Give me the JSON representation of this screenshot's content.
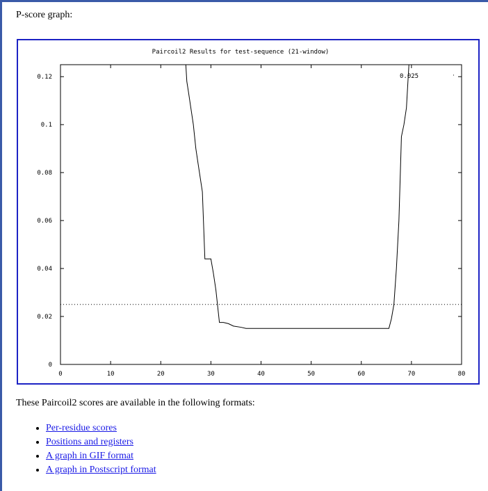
{
  "page": {
    "section_title": "P-score graph:",
    "formats_intro": "These Paircoil2 scores are available in the following formats:",
    "links": [
      "Per-residue scores",
      "Positions and registers",
      "A graph in GIF format",
      "A graph in Postscript format"
    ]
  },
  "colors": {
    "frame_border": "#1c22c4",
    "page_rule": "#3a5aa8",
    "link": "#1a1ae6",
    "plot_line": "#000000"
  },
  "chart_data": {
    "type": "line",
    "title": "Paircoil2 Results for test-sequence  (21-window)",
    "xlim": [
      0,
      80
    ],
    "ylim": [
      0,
      0.125
    ],
    "xticks": [
      0,
      10,
      20,
      30,
      40,
      50,
      60,
      70,
      80
    ],
    "xtick_labels": [
      "0",
      "10",
      "20",
      "30",
      "40",
      "50",
      "60",
      "70",
      "80"
    ],
    "yticks": [
      0,
      0.02,
      0.04,
      0.06,
      0.08,
      0.1,
      0.12
    ],
    "ytick_labels": [
      "0",
      "0.02",
      "0.04",
      "0.06",
      "0.08",
      "0.1",
      "0.12"
    ],
    "grid": false,
    "series": [
      {
        "style": "solid",
        "x": [
          25,
          25.2,
          25.5,
          26,
          26.5,
          27,
          27.5,
          28.3,
          28.8,
          29.4,
          30,
          30.5,
          31,
          31.7,
          32.5,
          33.5,
          34.5,
          36,
          37,
          40,
          50,
          60,
          65.5,
          66,
          66.5,
          67,
          67.5,
          68,
          68.5,
          69,
          69.3,
          69.5
        ],
        "y": [
          0.125,
          0.118,
          0.114,
          0.107,
          0.1,
          0.09,
          0.083,
          0.072,
          0.044,
          0.044,
          0.044,
          0.038,
          0.031,
          0.0175,
          0.0175,
          0.017,
          0.016,
          0.0155,
          0.015,
          0.015,
          0.015,
          0.015,
          0.015,
          0.019,
          0.025,
          0.04,
          0.06,
          0.095,
          0.1,
          0.107,
          0.118,
          0.125
        ]
      },
      {
        "name": "0.025",
        "style": "dotted",
        "x": [
          0,
          80
        ],
        "y": [
          0.025,
          0.025
        ]
      }
    ]
  }
}
